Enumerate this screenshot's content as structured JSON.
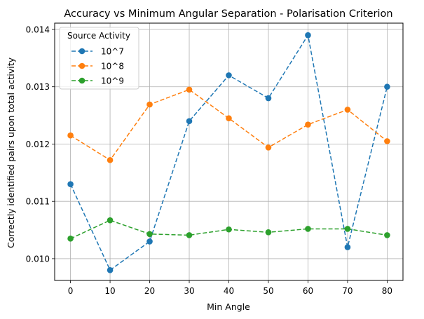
{
  "chart_data": {
    "type": "line",
    "title": "Accuracy vs Minimum Angular Separation - Polarisation Criterion",
    "xlabel": "Min Angle",
    "ylabel": "Correctly identified pairs upon total activity",
    "x": [
      0,
      10,
      20,
      30,
      40,
      50,
      60,
      70,
      80
    ],
    "xticks": [
      "0",
      "10",
      "20",
      "30",
      "40",
      "50",
      "60",
      "70",
      "80"
    ],
    "yticks": [
      "0.010",
      "0.011",
      "0.012",
      "0.013",
      "0.014"
    ],
    "ytick_values": [
      0.01,
      0.011,
      0.012,
      0.013,
      0.014
    ],
    "xlim": [
      -4,
      84
    ],
    "ylim": [
      0.00962,
      0.01411
    ],
    "grid": true,
    "legend_title": "Source Activity",
    "legend_position": "top-left",
    "series": [
      {
        "name": "10^7",
        "color": "#1f77b4",
        "values": [
          0.0113,
          0.0098,
          0.0103,
          0.0124,
          0.0132,
          0.0128,
          0.0139,
          0.0102,
          0.013
        ]
      },
      {
        "name": "10^8",
        "color": "#ff7f0e",
        "values": [
          0.01215,
          0.01172,
          0.01269,
          0.01295,
          0.01245,
          0.01194,
          0.01234,
          0.0126,
          0.01205
        ]
      },
      {
        "name": "10^9",
        "color": "#2ca02c",
        "values": [
          0.01035,
          0.01067,
          0.01043,
          0.01041,
          0.01051,
          0.01046,
          0.01052,
          0.01052,
          0.01041
        ]
      }
    ]
  }
}
